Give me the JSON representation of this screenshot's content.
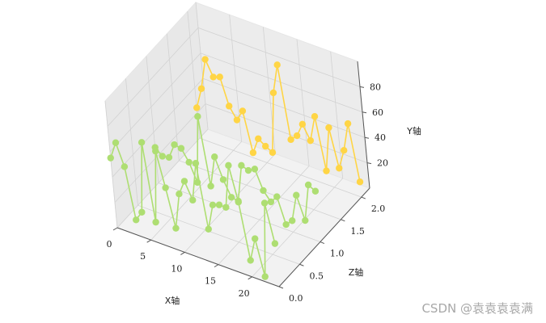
{
  "chart_data": {
    "type": "line3d",
    "xlabel": "X轴",
    "ylabel": "Y轴",
    "zlabel": "Z轴",
    "x_ticks": [
      0,
      5,
      10,
      15,
      20
    ],
    "y_ticks": [
      20,
      40,
      60,
      80
    ],
    "z_ticks": [
      "0.0",
      "0.5",
      "1.0",
      "1.5",
      "2.0"
    ],
    "xlim": [
      0,
      24
    ],
    "ylim": [
      0,
      100
    ],
    "zlim": [
      0,
      2.2
    ],
    "series": [
      {
        "color": "#aede72",
        "z": 0,
        "x": [
          0,
          1,
          2,
          3,
          4,
          5,
          6,
          7,
          8,
          9,
          10,
          11,
          12,
          13,
          14,
          15,
          16,
          17,
          18,
          19,
          20,
          21,
          22,
          23,
          24
        ],
        "y": [
          55,
          69,
          52,
          12,
          20,
          77,
          16,
          74,
          47,
          17,
          46,
          58,
          45,
          76,
          26,
          47,
          49,
          49,
          84,
          57,
          13,
          32,
          4,
          64,
          34
        ]
      },
      {
        "color": "#aede72",
        "z": 1,
        "x": [
          0,
          1,
          2,
          3,
          4,
          5,
          6,
          7,
          8,
          9,
          10,
          11,
          12,
          13,
          14,
          15,
          16,
          17,
          18,
          19,
          20,
          21,
          22,
          23,
          24
        ],
        "y": [
          28,
          23,
          24,
          36,
          35,
          26,
          12,
          66,
          13,
          38,
          22,
          10,
          9,
          39,
          37,
          40,
          25,
          18,
          24,
          4,
          9,
          31,
          13,
          43,
          40
        ]
      },
      {
        "color": "#ffd545",
        "z": 2,
        "x": [
          0,
          1,
          2,
          3,
          4,
          5,
          6,
          7,
          8,
          9,
          10,
          11,
          12,
          13,
          14,
          15,
          16,
          17,
          18,
          19,
          20,
          21,
          22,
          23,
          24
        ],
        "y": [
          24,
          41,
          66,
          54,
          56,
          35,
          26,
          35,
          4,
          17,
          13,
          10,
          59,
          83,
          26,
          31,
          42,
          31,
          52,
          11,
          47,
          17,
          33,
          56,
          12
        ]
      }
    ]
  },
  "watermark": "CSDN @袁袁袁袁满"
}
